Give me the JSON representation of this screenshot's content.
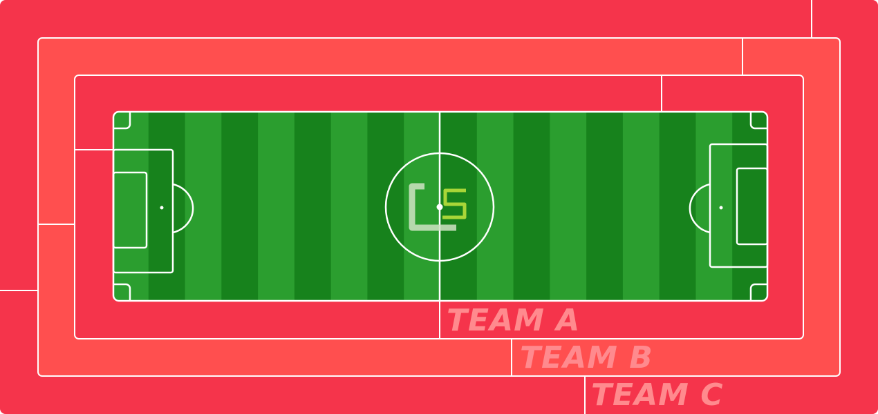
{
  "pitch": {
    "grass_light": "#2b9e2f",
    "grass_dark": "#17821c",
    "line_color": "#ffffff",
    "stripe_count": 18,
    "logo": {
      "name": "center-logo-icon",
      "text": "CS",
      "c_color": "#cfe3c3",
      "s_color": "#b9df3c"
    }
  },
  "zones": {
    "outer": {
      "label": "TEAM C",
      "color": "#f5344b"
    },
    "middle": {
      "label": "TEAM B",
      "color": "#ff4f4f"
    },
    "inner": {
      "label": "TEAM A",
      "color": "#f5344b"
    },
    "label_color": "#ff8a8e"
  }
}
